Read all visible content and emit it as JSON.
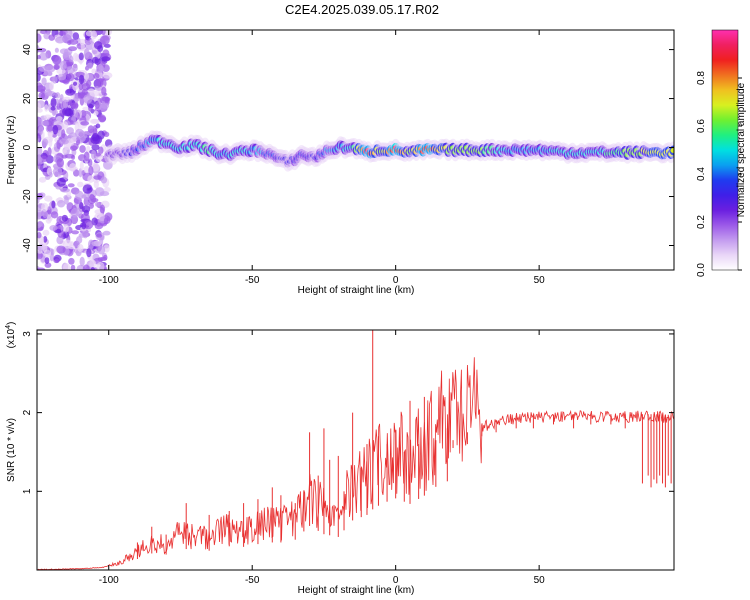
{
  "title": "C2E4.2025.039.05.17.R02",
  "colors": {
    "snr_line": "#e83030",
    "axis": "#000000",
    "colormap": [
      "#ffffff",
      "#e9d6f7",
      "#c39bef",
      "#9b59e8",
      "#6a1fe0",
      "#3f1fe8",
      "#1f3cf0",
      "#0aa0f0",
      "#00e0e0",
      "#20f080",
      "#70f030",
      "#d8f020",
      "#f0c020",
      "#f07020",
      "#f02020",
      "#f02060",
      "#ff30b0"
    ]
  },
  "chart_data": [
    {
      "type": "heatmap",
      "title": "C2E4.2025.039.05.17.R02",
      "xlabel": "Height of straight line (km)",
      "ylabel": "Frequency (Hz)",
      "xlim": [
        -125,
        97
      ],
      "ylim": [
        -50,
        48
      ],
      "xticks": [
        -100,
        -50,
        0,
        50
      ],
      "yticks": [
        -40,
        -20,
        0,
        20,
        40
      ],
      "xtick_labels": [
        "-100",
        "-50",
        "0",
        "50"
      ],
      "ytick_labels": [
        "-40",
        "-20",
        "0",
        "20",
        "40"
      ],
      "colorbar": {
        "label": "Normalized spectral amplitude",
        "range": [
          0,
          1
        ],
        "ticks": [
          0.0,
          0.2,
          0.4,
          0.6,
          0.8
        ],
        "tick_labels": [
          "0.0",
          "0.2",
          "0.4",
          "0.6",
          "0.8"
        ]
      },
      "ridge": {
        "x": [
          -100,
          -92,
          -85,
          -80,
          -75,
          -70,
          -65,
          -60,
          -55,
          -50,
          -45,
          -40,
          -37,
          -33,
          -28,
          -25,
          -20,
          -15,
          -10,
          -5,
          0,
          5,
          10,
          20,
          30,
          40,
          50,
          60,
          70,
          80,
          90,
          97
        ],
        "y": [
          -3,
          -2,
          3,
          2,
          0,
          1,
          -1,
          -3,
          -2,
          -1,
          -2,
          -5,
          -6,
          -3,
          -4,
          -2,
          0,
          0,
          -2,
          -1,
          -1,
          -2,
          -1,
          -1,
          -1,
          -1,
          -1,
          -2,
          -2,
          -2,
          -2,
          -2
        ],
        "amplitude": [
          0.25,
          0.3,
          0.45,
          0.5,
          0.5,
          0.5,
          0.55,
          0.45,
          0.5,
          0.45,
          0.4,
          0.3,
          0.3,
          0.35,
          0.3,
          0.4,
          0.45,
          0.5,
          0.95,
          0.6,
          0.95,
          0.6,
          0.9,
          0.6,
          0.6,
          0.45,
          0.45,
          0.5,
          0.5,
          0.6,
          0.7,
          0.7
        ]
      }
    },
    {
      "type": "line",
      "xlabel": "Height of straight line (km)",
      "ylabel": "SNR (10 * v/v)",
      "yscale_label": "(x10",
      "yscale_exp": "4",
      "yscale_close": ")",
      "xlim": [
        -125,
        97
      ],
      "ylim": [
        0,
        3.05
      ],
      "xticks": [
        -100,
        -50,
        0,
        50
      ],
      "yticks": [
        1,
        2,
        3
      ],
      "xtick_labels": [
        "-100",
        "-50",
        "0",
        "50"
      ],
      "ytick_labels": [
        "1",
        "2",
        "3"
      ],
      "series": [
        {
          "x": [
            -125,
            -110,
            -102,
            -98,
            -95,
            -90,
            -85,
            -80,
            -75,
            -70,
            -65,
            -60,
            -55,
            -50,
            -45,
            -40,
            -35,
            -30,
            -25,
            -20,
            -15,
            -10,
            -8,
            -5,
            0,
            5,
            10,
            15,
            20,
            25,
            30,
            35,
            40,
            50,
            60,
            70,
            80,
            85,
            90,
            97
          ],
          "y": [
            0.0,
            0.01,
            0.03,
            0.06,
            0.1,
            0.2,
            0.3,
            0.28,
            0.4,
            0.35,
            0.35,
            0.45,
            0.4,
            0.45,
            0.5,
            0.5,
            0.55,
            0.8,
            0.65,
            0.6,
            0.9,
            1.0,
            1.1,
            1.2,
            1.3,
            1.2,
            1.35,
            1.55,
            1.65,
            1.75,
            1.85,
            1.9,
            1.95,
            1.97,
            1.98,
            1.98,
            1.98,
            1.98,
            1.98,
            1.97
          ]
        }
      ],
      "peaks": {
        "x": [
          -90,
          -85,
          -80,
          -73,
          -65,
          -58,
          -53,
          -48,
          -43,
          -40,
          -35,
          -32,
          -30,
          -27,
          -25,
          -23,
          -20,
          -18,
          -15,
          -12,
          -10,
          -8,
          -6,
          -3,
          0,
          3,
          5,
          8,
          10,
          14,
          18
        ],
        "y": [
          0.35,
          0.55,
          0.45,
          0.85,
          0.7,
          0.75,
          0.85,
          0.9,
          1.05,
          0.95,
          0.85,
          1.0,
          1.75,
          1.2,
          1.8,
          1.4,
          1.45,
          1.0,
          2.0,
          1.3,
          1.6,
          3.05,
          1.7,
          1.6,
          1.75,
          1.5,
          2.15,
          1.6,
          2.2,
          1.65,
          1.8
        ]
      },
      "dips": {
        "x": [
          20,
          25,
          30,
          35,
          42,
          48,
          55,
          62,
          68,
          75,
          80,
          86,
          88,
          89,
          90,
          91,
          92,
          93,
          94,
          95,
          96
        ],
        "y": [
          1.55,
          1.6,
          1.7,
          1.75,
          1.8,
          1.8,
          1.85,
          1.8,
          1.85,
          1.85,
          1.8,
          1.1,
          1.2,
          1.05,
          1.15,
          1.1,
          1.2,
          1.1,
          1.05,
          1.2,
          1.1
        ]
      }
    }
  ]
}
